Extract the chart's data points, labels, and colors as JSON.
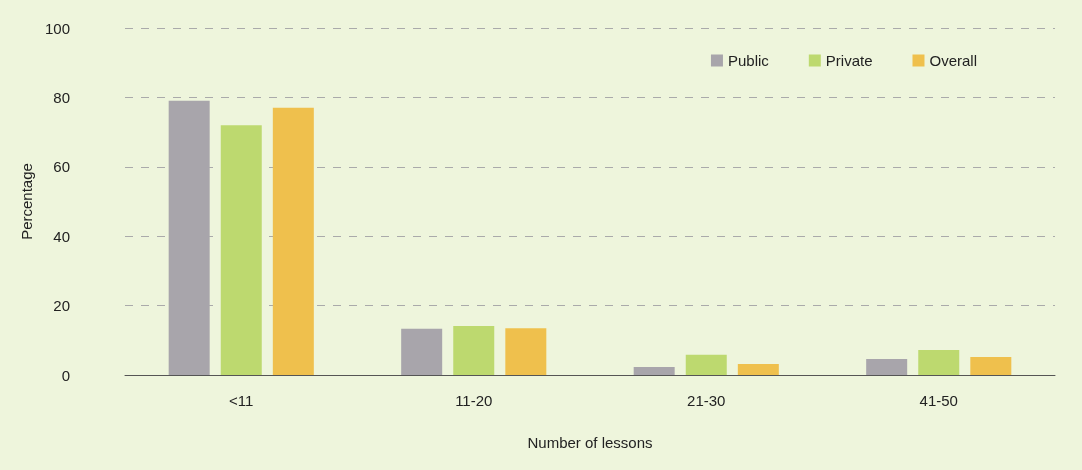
{
  "chart_data": {
    "type": "bar",
    "xlabel": "Number of lessons",
    "ylabel": "Percentage",
    "categories": [
      "<11",
      "11-20",
      "21-30",
      "41-50"
    ],
    "series": [
      {
        "name": "Public",
        "color": "#a8a5ab",
        "values": [
          79,
          13.3,
          2.3,
          4.6
        ]
      },
      {
        "name": "Private",
        "color": "#bdd96f",
        "values": [
          72,
          14.1,
          5.8,
          7.2
        ]
      },
      {
        "name": "Overall",
        "color": "#efc04d",
        "values": [
          77,
          13.5,
          3.2,
          5.2
        ]
      }
    ],
    "ylim": [
      0,
      100
    ],
    "yticks": [
      0,
      20,
      40,
      60,
      80,
      100
    ],
    "grid": "y",
    "legend": "top right"
  }
}
